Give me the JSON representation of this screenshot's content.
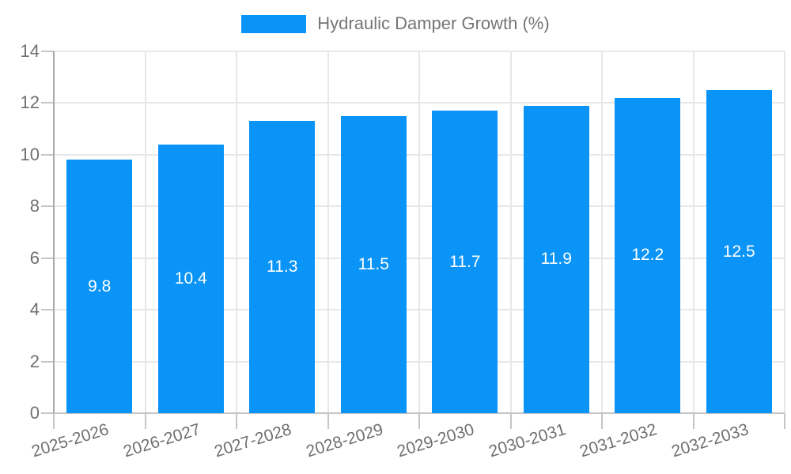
{
  "legend": {
    "label": "Hydraulic Damper Growth (%)"
  },
  "chart_data": {
    "type": "bar",
    "title": "Hydraulic Damper Growth (%)",
    "categories": [
      "2025-2026",
      "2026-2027",
      "2027-2028",
      "2028-2029",
      "2029-2030",
      "2030-2031",
      "2031-2032",
      "2032-2033"
    ],
    "values": [
      9.8,
      10.4,
      11.3,
      11.5,
      11.7,
      11.9,
      12.2,
      12.5
    ],
    "data_labels": [
      "9.8",
      "10.4",
      "11.3",
      "11.5",
      "11.7",
      "11.9",
      "12.2",
      "12.5"
    ],
    "xlabel": "",
    "ylabel": "",
    "ylim": [
      0,
      14
    ],
    "ytick_step": 2,
    "yticks": [
      "0",
      "2",
      "4",
      "6",
      "8",
      "10",
      "12",
      "14"
    ],
    "grid": true,
    "legend_position": "top",
    "colors": {
      "bar": "#0a94f7",
      "gridline": "#e7e7e7",
      "axis_line_y": "#a8a8a8",
      "axis_line_x": "#c4c4c4",
      "tick_mark": "#c6c6c6",
      "axis_text": "#707070",
      "legend_text": "#757575",
      "value_label_text": "#ffffff"
    }
  }
}
